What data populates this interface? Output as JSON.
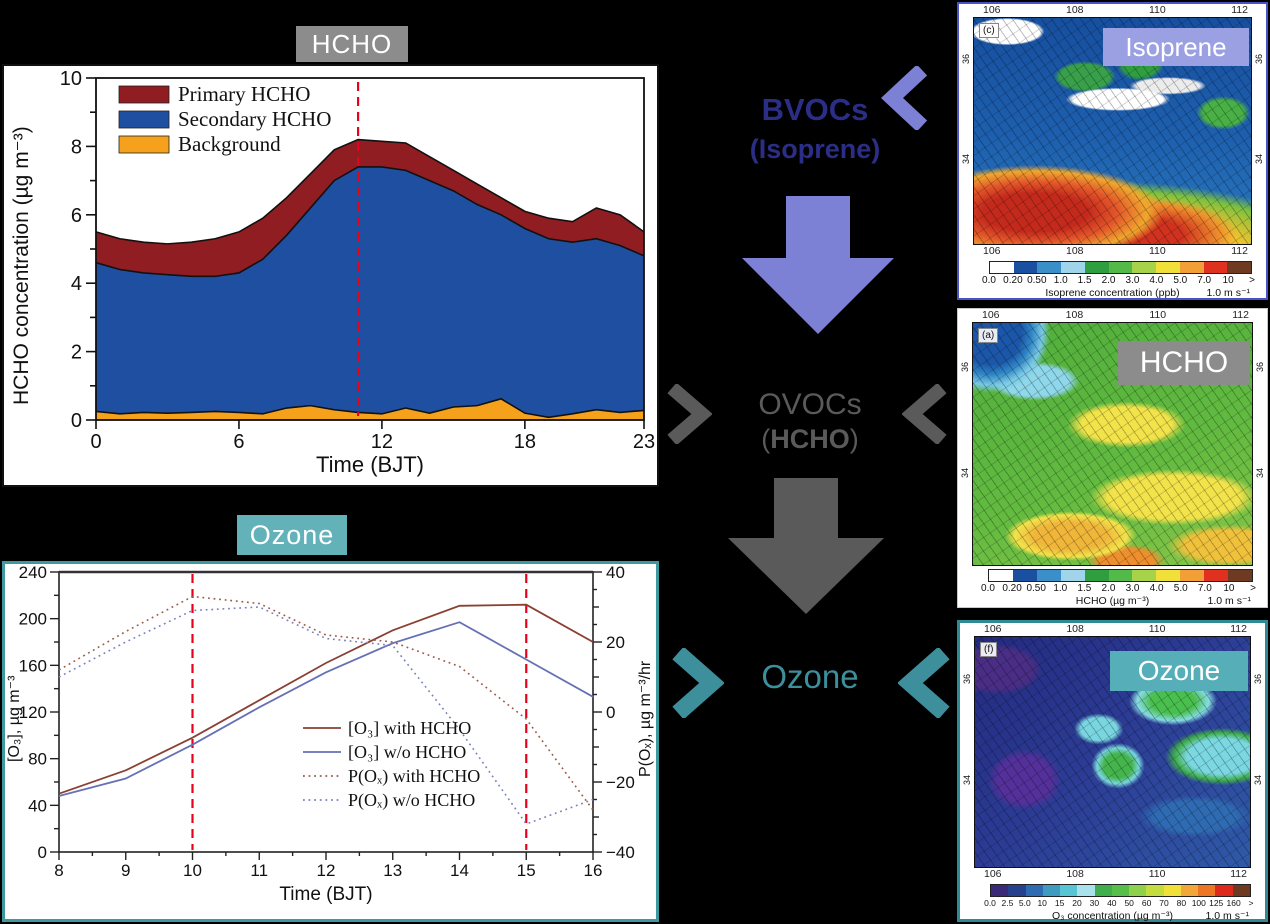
{
  "figure": {
    "background": "#000000"
  },
  "hcho_chart": {
    "title": "HCHO",
    "title_bg": "#8c8c8c",
    "title_color": "#ffffff",
    "ylabel": "HCHO concentration (µg m⁻³)",
    "xlabel": "Time (BJT)"
  },
  "ozone_chart": {
    "title": "Ozone",
    "title_bg": "#63b2b9",
    "title_color": "#ffffff",
    "ylabel_left": "[O₃], µg m⁻³",
    "ylabel_right": "P(Oₓ), µg m⁻³/hr",
    "xlabel": "Time (BJT)"
  },
  "flow": {
    "bvocs": {
      "line1": "BVOCs",
      "line2": "(Isoprene)",
      "text_color": "#2b2e87",
      "accent": "#7d81d6"
    },
    "ovocs": {
      "line1": "OVOCs",
      "line2_pre": "(",
      "line2_bold": "HCHO",
      "line2_post": ")",
      "text_color": "#5a5a5a",
      "accent": "#5a5a5a"
    },
    "ozone": {
      "label": "Ozone",
      "text_color": "#3d8f9c",
      "accent": "#3d8f9c"
    }
  },
  "maps": [
    {
      "id": "isoprene",
      "panel_letter": "(c)",
      "title": "Isoprene",
      "title_bg": "#9aa0e2",
      "border": "#4953c8",
      "lon_ticks": [
        "106",
        "108",
        "110",
        "112"
      ],
      "lat_ticks": [
        "36",
        "34"
      ],
      "bottom_lon_ticks": true,
      "colorbar": {
        "tick_labels": [
          "0.0",
          "0.20",
          "0.50",
          "1.0",
          "1.5",
          "2.0",
          "3.0",
          "4.0",
          "5.0",
          "7.0",
          "10",
          ">"
        ],
        "colors": [
          "#ffffff",
          "#1b4fa0",
          "#3a8fc8",
          "#9fd4ea",
          "#2f9e3f",
          "#53b948",
          "#a6d34a",
          "#f2e03a",
          "#f29f38",
          "#e0301f",
          "#6f3a22"
        ],
        "caption": "Isoprene concentration (ppb)",
        "wind_ref": "1.0 m s⁻¹"
      }
    },
    {
      "id": "hcho",
      "panel_letter": "(a)",
      "title": "HCHO",
      "title_bg": "#8c8c8c",
      "border": "#c8c8c8",
      "lon_ticks": [
        "106",
        "108",
        "110",
        "112"
      ],
      "lat_ticks": [
        "36",
        "34"
      ],
      "bottom_lon_ticks": false,
      "colorbar": {
        "tick_labels": [
          "0.0",
          "0.20",
          "0.50",
          "1.0",
          "1.5",
          "2.0",
          "3.0",
          "4.0",
          "5.0",
          "7.0",
          "10",
          ">"
        ],
        "colors": [
          "#ffffff",
          "#1b4fa0",
          "#3a8fc8",
          "#9fd4ea",
          "#2f9e3f",
          "#53b948",
          "#a6d34a",
          "#f2e03a",
          "#f29f38",
          "#e0301f",
          "#6f3a22"
        ],
        "caption": "HCHO (µg m⁻³)",
        "wind_ref": "1.0 m s⁻¹"
      }
    },
    {
      "id": "ozone",
      "panel_letter": "(f)",
      "title": "Ozone",
      "title_bg": "#56aeb8",
      "border": "#2e8b96",
      "lon_ticks": [
        "106",
        "108",
        "110",
        "112"
      ],
      "lat_ticks": [
        "36",
        "34"
      ],
      "bottom_lon_ticks": true,
      "colorbar": {
        "tick_labels": [
          "0.0",
          "2.5",
          "5.0",
          "10",
          "15",
          "20",
          "30",
          "40",
          "50",
          "60",
          "70",
          "80",
          "100",
          "125",
          "160",
          ">"
        ],
        "colors": [
          "#3b2a78",
          "#28418f",
          "#2f6bb3",
          "#3f9bbf",
          "#59c4d4",
          "#a9e2ea",
          "#3fae4c",
          "#57bf49",
          "#8ed14d",
          "#c4dc3e",
          "#f2e03a",
          "#f2a838",
          "#ee7524",
          "#df2a1b",
          "#6f3a22"
        ],
        "caption": "O₃ concentration (µg m⁻³)",
        "wind_ref": "1.0 m s⁻¹"
      }
    }
  ],
  "chart_data": [
    {
      "id": "hcho_diurnal",
      "type": "area",
      "stacked": true,
      "title": "HCHO",
      "xlabel": "Time (BJT)",
      "ylabel": "HCHO concentration (µg m⁻³)",
      "x": [
        0,
        1,
        2,
        3,
        4,
        5,
        6,
        7,
        8,
        9,
        10,
        11,
        12,
        13,
        14,
        15,
        16,
        17,
        18,
        19,
        20,
        21,
        22,
        23
      ],
      "xticks": [
        0,
        6,
        12,
        18,
        23
      ],
      "ylim": [
        0,
        10
      ],
      "yticks": [
        0,
        2,
        4,
        6,
        8,
        10
      ],
      "vline_x": 11,
      "vline_color": "#e8001d",
      "series": [
        {
          "name": "Background",
          "color": "#f5a11c",
          "values": [
            0.25,
            0.18,
            0.22,
            0.2,
            0.22,
            0.25,
            0.22,
            0.18,
            0.35,
            0.42,
            0.3,
            0.22,
            0.18,
            0.35,
            0.2,
            0.38,
            0.42,
            0.62,
            0.2,
            0.08,
            0.18,
            0.3,
            0.22,
            0.28
          ]
        },
        {
          "name": "Secondary HCHO",
          "color": "#1f4fa0",
          "values": [
            4.35,
            4.22,
            4.08,
            4.05,
            3.98,
            3.95,
            4.08,
            4.52,
            5.05,
            5.78,
            6.7,
            7.18,
            7.22,
            6.95,
            6.8,
            6.32,
            5.88,
            5.38,
            5.4,
            5.22,
            5.02,
            5.0,
            4.88,
            4.52
          ]
        },
        {
          "name": "Primary HCHO",
          "color": "#8f1d22",
          "values": [
            0.9,
            0.9,
            0.9,
            0.9,
            1.0,
            1.1,
            1.2,
            1.2,
            1.1,
            1.0,
            0.9,
            0.8,
            0.75,
            0.8,
            0.7,
            0.6,
            0.6,
            0.5,
            0.5,
            0.6,
            0.6,
            0.9,
            0.9,
            0.7
          ]
        }
      ],
      "legend_order": [
        "Primary HCHO",
        "Secondary HCHO",
        "Background"
      ]
    },
    {
      "id": "ozone_diurnal",
      "type": "line",
      "xlabel": "Time (BJT)",
      "ylabel_left": "[O₃], µg m⁻³",
      "ylabel_right": "P(Oₓ), µg m⁻³/hr",
      "x": [
        8,
        9,
        10,
        11,
        12,
        13,
        14,
        15,
        16
      ],
      "xticks": [
        8,
        9,
        10,
        11,
        12,
        13,
        14,
        15,
        16
      ],
      "ylim_left": [
        0,
        240
      ],
      "yticks_left": [
        0,
        40,
        80,
        120,
        160,
        200,
        240
      ],
      "ylim_right": [
        -40,
        40
      ],
      "yticks_right": [
        -40,
        -20,
        0,
        20,
        40
      ],
      "vlines": [
        10,
        15
      ],
      "vline_color": "#e8001d",
      "series": [
        {
          "name": "[O₃] with HCHO",
          "axis": "left",
          "style": "solid",
          "color": "#8a4032",
          "values": [
            50,
            70,
            98,
            130,
            162,
            190,
            211,
            212,
            180
          ]
        },
        {
          "name": "[O₃] w/o HCHO",
          "axis": "left",
          "style": "solid",
          "color": "#6670b5",
          "values": [
            48,
            63,
            92,
            124,
            154,
            179,
            197,
            165,
            133
          ]
        },
        {
          "name": "P(Oₓ) with HCHO",
          "axis": "right",
          "style": "dotted",
          "color": "#9a5a48",
          "values": [
            12,
            23,
            33,
            31,
            22,
            20,
            13,
            -2,
            -28
          ]
        },
        {
          "name": "P(Oₓ) w/o HCHO",
          "axis": "right",
          "style": "dotted",
          "color": "#7a80bd",
          "values": [
            10,
            20,
            29,
            30,
            21,
            19,
            -5,
            -32,
            -25
          ]
        }
      ]
    }
  ]
}
